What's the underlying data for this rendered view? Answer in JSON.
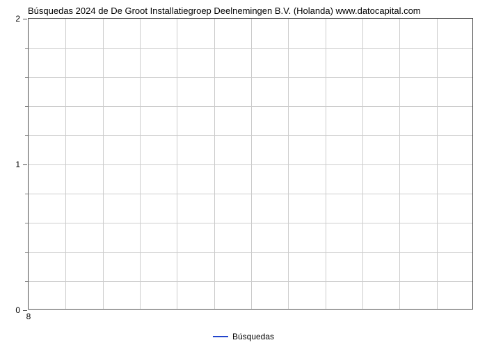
{
  "chart": {
    "type": "line",
    "title": "Búsquedas 2024 de De Groot Installatiegroep Deelnemingen B.V. (Holanda) www.datocapital.com",
    "title_fontsize": 13,
    "title_color": "#000000",
    "background_color": "#ffffff",
    "plot_border_color": "#4d4d4d",
    "grid_color": "#cccccc",
    "y": {
      "lim": [
        0,
        2
      ],
      "major_ticks": [
        0,
        1,
        2
      ],
      "minor_divisions": 5,
      "label_fontsize": 12
    },
    "x": {
      "tick_labels": [
        "8"
      ],
      "tick_positions": [
        0
      ],
      "vertical_grid_count": 12,
      "label_fontsize": 12
    },
    "legend": {
      "label": "Búsquedas",
      "line_color": "#2244cc",
      "fontsize": 12
    },
    "series": {
      "values": [],
      "line_color": "#2244cc",
      "line_width": 2
    }
  }
}
